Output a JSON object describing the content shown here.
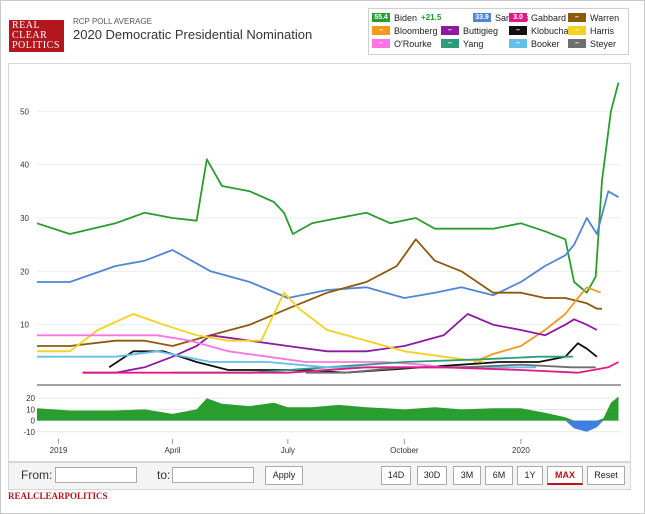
{
  "header": {
    "logo_lines": [
      "REAL",
      "CLEAR",
      "POLITICS"
    ],
    "supertitle": "RCP POLL AVERAGE",
    "title": "2020 Democratic Presidential Nomination"
  },
  "legend": [
    {
      "name": "Biden",
      "value": "55.4",
      "spread": "+21.5",
      "color": "#2a9d2f"
    },
    {
      "name": "Sanders",
      "value": "33.9",
      "color": "#4f86d6"
    },
    {
      "name": "Gabbard",
      "value": "3.0",
      "color": "#e0198a"
    },
    {
      "name": "Warren",
      "value": "",
      "color": "#8b5a0a"
    },
    {
      "name": "Bloomberg",
      "value": "",
      "color": "#f39a1d"
    },
    {
      "name": "Buttigieg",
      "value": "",
      "color": "#8e1aa0"
    },
    {
      "name": "Klobuchar",
      "value": "",
      "color": "#111111"
    },
    {
      "name": "Harris",
      "value": "",
      "color": "#f2d21f"
    },
    {
      "name": "O'Rourke",
      "value": "",
      "color": "#ff74e4"
    },
    {
      "name": "Yang",
      "value": "",
      "color": "#2f9b7e"
    },
    {
      "name": "Booker",
      "value": "",
      "color": "#62c0ea"
    },
    {
      "name": "Steyer",
      "value": "",
      "color": "#6f6f6f"
    }
  ],
  "chart_data": {
    "type": "line",
    "title": "2020 Democratic Presidential Nomination",
    "subtitle": "RCP POLL AVERAGE",
    "xlabel": "",
    "ylabel": "",
    "x_ticks": [
      "2019",
      "April",
      "July",
      "October",
      "2020"
    ],
    "x_tick_dates": [
      "2019-01-01",
      "2019-04-01",
      "2019-07-01",
      "2019-10-01",
      "2020-01-01"
    ],
    "x_range": [
      "2018-12-15",
      "2020-03-20"
    ],
    "ylim": [
      0,
      57
    ],
    "y_ticks": [
      10,
      20,
      30,
      40,
      50
    ],
    "series": [
      {
        "name": "Biden",
        "color": "#2a9d2f",
        "x": [
          "2018-12-15",
          "2019-01-10",
          "2019-02-15",
          "2019-03-10",
          "2019-04-01",
          "2019-04-20",
          "2019-04-28",
          "2019-05-10",
          "2019-06-01",
          "2019-06-20",
          "2019-06-28",
          "2019-07-05",
          "2019-07-20",
          "2019-08-10",
          "2019-09-01",
          "2019-09-20",
          "2019-10-10",
          "2019-10-25",
          "2019-11-15",
          "2019-12-10",
          "2020-01-01",
          "2020-01-20",
          "2020-02-05",
          "2020-02-12",
          "2020-02-22",
          "2020-02-29",
          "2020-03-05",
          "2020-03-12",
          "2020-03-18"
        ],
        "y": [
          29,
          27,
          29,
          31,
          30,
          29.5,
          41,
          36,
          35,
          33,
          31,
          27,
          29,
          30,
          31,
          29,
          30,
          28,
          28,
          28,
          29,
          27.5,
          26,
          18,
          16,
          19,
          37,
          50,
          55.4
        ]
      },
      {
        "name": "Sanders",
        "color": "#4f86d6",
        "x": [
          "2018-12-15",
          "2019-01-10",
          "2019-02-15",
          "2019-03-10",
          "2019-04-01",
          "2019-05-01",
          "2019-06-01",
          "2019-07-01",
          "2019-08-01",
          "2019-09-01",
          "2019-10-01",
          "2019-10-25",
          "2019-11-15",
          "2019-12-10",
          "2020-01-01",
          "2020-01-20",
          "2020-02-05",
          "2020-02-12",
          "2020-02-22",
          "2020-03-01",
          "2020-03-10",
          "2020-03-18"
        ],
        "y": [
          18,
          18,
          21,
          22,
          24,
          20,
          18,
          15,
          16.5,
          17,
          15,
          16,
          17,
          15.5,
          18,
          21,
          23,
          25,
          30,
          27,
          35,
          33.9
        ]
      },
      {
        "name": "Warren",
        "color": "#8b5a0a",
        "x": [
          "2018-12-15",
          "2019-01-10",
          "2019-02-15",
          "2019-03-10",
          "2019-04-01",
          "2019-05-01",
          "2019-06-01",
          "2019-07-01",
          "2019-08-01",
          "2019-09-01",
          "2019-09-25",
          "2019-10-10",
          "2019-10-25",
          "2019-11-15",
          "2019-12-10",
          "2020-01-01",
          "2020-01-20",
          "2020-02-05",
          "2020-02-22",
          "2020-03-01",
          "2020-03-05"
        ],
        "y": [
          6,
          6,
          7,
          7,
          6,
          8,
          10,
          13,
          16,
          18,
          21,
          26,
          22,
          20,
          16,
          16,
          15,
          15,
          14,
          13,
          13
        ]
      },
      {
        "name": "Bloomberg",
        "color": "#f39a1d",
        "x": [
          "2019-11-25",
          "2019-12-10",
          "2020-01-01",
          "2020-01-20",
          "2020-02-05",
          "2020-02-15",
          "2020-02-22",
          "2020-03-04"
        ],
        "y": [
          3,
          4.5,
          6,
          9,
          12,
          15,
          17,
          16
        ]
      },
      {
        "name": "Buttigieg",
        "color": "#8e1aa0",
        "x": [
          "2019-01-20",
          "2019-02-15",
          "2019-03-10",
          "2019-04-01",
          "2019-04-20",
          "2019-05-01",
          "2019-06-01",
          "2019-07-01",
          "2019-08-01",
          "2019-09-01",
          "2019-10-01",
          "2019-11-01",
          "2019-11-20",
          "2019-12-10",
          "2020-01-01",
          "2020-01-20",
          "2020-02-05",
          "2020-02-12",
          "2020-02-22",
          "2020-03-01"
        ],
        "y": [
          1,
          1,
          2,
          4,
          6,
          8,
          7,
          6,
          5,
          5,
          6,
          8,
          12,
          10,
          9,
          8,
          10,
          11,
          10,
          9
        ]
      },
      {
        "name": "Klobuchar",
        "color": "#111111",
        "x": [
          "2019-02-10",
          "2019-03-01",
          "2019-03-25",
          "2019-04-20",
          "2019-05-15",
          "2019-06-15",
          "2019-07-15",
          "2019-08-15",
          "2019-09-15",
          "2019-10-15",
          "2019-11-15",
          "2019-12-15",
          "2020-01-15",
          "2020-02-05",
          "2020-02-15",
          "2020-02-22",
          "2020-03-01"
        ],
        "y": [
          2,
          5,
          5,
          3,
          1.5,
          1.5,
          1.5,
          1,
          1.5,
          2,
          2.5,
          3,
          3,
          4,
          6.5,
          5.5,
          4
        ]
      },
      {
        "name": "Harris",
        "color": "#f2d21f",
        "x": [
          "2018-12-15",
          "2019-01-10",
          "2019-02-01",
          "2019-03-01",
          "2019-03-25",
          "2019-04-20",
          "2019-05-15",
          "2019-06-10",
          "2019-06-28",
          "2019-07-10",
          "2019-08-01",
          "2019-09-01",
          "2019-10-01",
          "2019-11-01",
          "2019-12-03"
        ],
        "y": [
          5,
          5,
          9,
          12,
          10,
          8,
          7,
          7,
          16,
          13,
          9,
          7,
          5,
          4,
          3
        ]
      },
      {
        "name": "O'Rourke",
        "color": "#ff74e4",
        "x": [
          "2018-12-15",
          "2019-01-10",
          "2019-02-15",
          "2019-03-20",
          "2019-04-15",
          "2019-05-15",
          "2019-06-15",
          "2019-07-15",
          "2019-08-15",
          "2019-09-15",
          "2019-10-15",
          "2019-11-01"
        ],
        "y": [
          8,
          8,
          8,
          8,
          7,
          5,
          4,
          3,
          3,
          3,
          2.5,
          2
        ]
      },
      {
        "name": "Yang",
        "color": "#2f9b7e",
        "x": [
          "2019-04-01",
          "2019-06-01",
          "2019-08-01",
          "2019-10-01",
          "2019-12-01",
          "2020-01-15",
          "2020-02-11"
        ],
        "y": [
          1,
          1,
          2,
          3,
          3.5,
          4,
          4
        ]
      },
      {
        "name": "Booker",
        "color": "#62c0ea",
        "x": [
          "2018-12-15",
          "2019-01-10",
          "2019-02-15",
          "2019-03-20",
          "2019-05-01",
          "2019-06-15",
          "2019-08-01",
          "2019-09-15",
          "2019-11-01",
          "2019-12-15",
          "2020-01-13"
        ],
        "y": [
          4,
          4,
          4,
          5,
          3,
          3,
          2,
          2,
          2,
          2,
          2
        ]
      },
      {
        "name": "Steyer",
        "color": "#6f6f6f",
        "x": [
          "2019-07-15",
          "2019-08-15",
          "2019-10-01",
          "2019-11-15",
          "2020-01-01",
          "2020-02-10",
          "2020-02-29"
        ],
        "y": [
          1,
          1,
          2,
          2,
          2.5,
          2,
          2
        ]
      },
      {
        "name": "Gabbard",
        "color": "#e0198a",
        "x": [
          "2019-01-20",
          "2019-03-01",
          "2019-05-01",
          "2019-07-01",
          "2019-09-01",
          "2019-11-01",
          "2020-01-01",
          "2020-02-15",
          "2020-03-10",
          "2020-03-18"
        ],
        "y": [
          1,
          1,
          1,
          1,
          2,
          2,
          1.5,
          1,
          2,
          3.0
        ]
      }
    ],
    "spread": {
      "name": "Biden spread",
      "ylim": [
        -12,
        22
      ],
      "y_ticks": [
        20,
        10,
        0,
        -10
      ],
      "x": [
        "2018-12-15",
        "2019-01-10",
        "2019-02-15",
        "2019-03-10",
        "2019-04-01",
        "2019-04-20",
        "2019-04-28",
        "2019-05-10",
        "2019-06-01",
        "2019-06-20",
        "2019-07-01",
        "2019-07-20",
        "2019-08-10",
        "2019-09-01",
        "2019-10-01",
        "2019-10-25",
        "2019-11-15",
        "2019-12-10",
        "2020-01-01",
        "2020-01-20",
        "2020-02-05",
        "2020-02-12",
        "2020-02-22",
        "2020-03-01",
        "2020-03-06",
        "2020-03-12",
        "2020-03-18"
      ],
      "y": [
        11,
        9,
        9,
        10,
        6,
        10,
        20,
        15,
        13,
        16,
        12,
        12,
        14,
        12,
        10,
        12,
        10,
        11,
        11,
        7,
        3,
        -7,
        -10,
        -6,
        2,
        16,
        21.5
      ]
    }
  },
  "controls": {
    "from_label": "From:",
    "to_label": "to:",
    "from_value": "",
    "to_value": "",
    "apply_label": "Apply",
    "ranges": [
      "14D",
      "30D",
      "3M",
      "6M",
      "1Y",
      "MAX"
    ],
    "active_range": "MAX",
    "reset_label": "Reset"
  },
  "footer": {
    "brand": "REALCLEARPOLITICS"
  }
}
